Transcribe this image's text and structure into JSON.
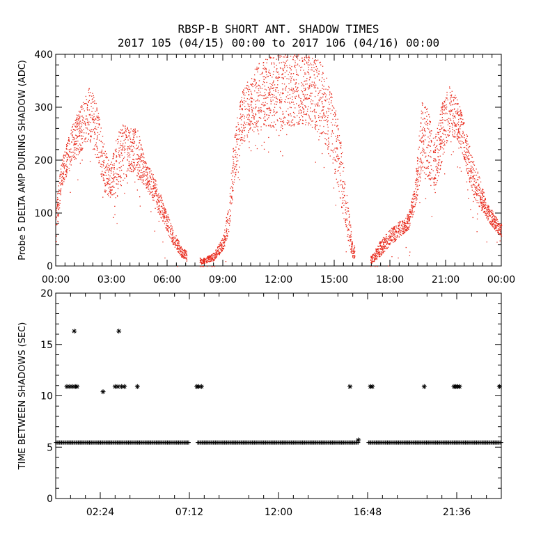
{
  "title_line1": "RBSP-B SHORT ANT. SHADOW TIMES",
  "title_line2": "2017 105 (04/15) 00:00 to 2017 106 (04/16) 00:00",
  "colors": {
    "top_points": "#e8281a",
    "bottom_points": "#000000",
    "axes": "#000000"
  },
  "chart_data": [
    {
      "type": "scatter",
      "ylabel": "Probe 5 DELTA AMP DURING SHADOW (ADC)",
      "xlabel": "",
      "xlim_hours": [
        0,
        24
      ],
      "ylim": [
        0,
        400
      ],
      "x_ticks": [
        "00:00",
        "03:00",
        "06:00",
        "09:00",
        "12:00",
        "15:00",
        "18:00",
        "21:00",
        "00:00"
      ],
      "y_ticks": [
        "0",
        "100",
        "200",
        "300",
        "400"
      ],
      "marker": "dot",
      "grid": false,
      "series": [
        {
          "color": "#e8281a",
          "envelope_upper": [
            [
              0.0,
              120
            ],
            [
              0.3,
              200
            ],
            [
              0.8,
              260
            ],
            [
              1.4,
              310
            ],
            [
              1.8,
              340
            ],
            [
              2.2,
              310
            ],
            [
              2.6,
              230
            ],
            [
              2.9,
              190
            ],
            [
              3.3,
              250
            ],
            [
              3.6,
              270
            ],
            [
              4.0,
              260
            ],
            [
              4.4,
              260
            ],
            [
              4.8,
              200
            ],
            [
              5.3,
              170
            ],
            [
              5.8,
              120
            ],
            [
              6.3,
              70
            ],
            [
              6.8,
              35
            ],
            [
              7.0,
              30
            ],
            [
              7.9,
              15
            ],
            [
              8.5,
              25
            ],
            [
              9.0,
              55
            ],
            [
              9.3,
              120
            ],
            [
              9.6,
              250
            ],
            [
              10.0,
              330
            ],
            [
              10.5,
              360
            ],
            [
              11.0,
              390
            ],
            [
              12.0,
              400
            ],
            [
              13.5,
              400
            ],
            [
              14.3,
              390
            ],
            [
              14.8,
              340
            ],
            [
              15.2,
              280
            ],
            [
              15.6,
              160
            ],
            [
              16.0,
              40
            ],
            [
              17.0,
              20
            ],
            [
              17.5,
              50
            ],
            [
              18.0,
              70
            ],
            [
              18.5,
              85
            ],
            [
              19.0,
              100
            ],
            [
              19.3,
              150
            ],
            [
              19.7,
              310
            ],
            [
              20.0,
              300
            ],
            [
              20.4,
              240
            ],
            [
              20.8,
              310
            ],
            [
              21.2,
              340
            ],
            [
              21.6,
              320
            ],
            [
              22.0,
              270
            ],
            [
              22.4,
              210
            ],
            [
              22.8,
              170
            ],
            [
              23.2,
              120
            ],
            [
              23.6,
              100
            ],
            [
              24.0,
              80
            ]
          ],
          "envelope_lower": [
            [
              0.0,
              40
            ],
            [
              0.3,
              150
            ],
            [
              0.8,
              190
            ],
            [
              1.4,
              220
            ],
            [
              1.8,
              240
            ],
            [
              2.2,
              200
            ],
            [
              2.6,
              140
            ],
            [
              2.9,
              130
            ],
            [
              3.3,
              130
            ],
            [
              3.6,
              160
            ],
            [
              4.0,
              180
            ],
            [
              4.4,
              170
            ],
            [
              4.8,
              150
            ],
            [
              5.3,
              120
            ],
            [
              5.8,
              80
            ],
            [
              6.3,
              40
            ],
            [
              6.8,
              15
            ],
            [
              7.0,
              10
            ],
            [
              7.9,
              5
            ],
            [
              8.5,
              10
            ],
            [
              9.0,
              30
            ],
            [
              9.3,
              60
            ],
            [
              9.6,
              160
            ],
            [
              10.0,
              230
            ],
            [
              10.5,
              250
            ],
            [
              11.0,
              255
            ],
            [
              12.0,
              265
            ],
            [
              13.5,
              265
            ],
            [
              14.3,
              250
            ],
            [
              14.8,
              200
            ],
            [
              15.2,
              150
            ],
            [
              15.6,
              60
            ],
            [
              16.0,
              15
            ],
            [
              17.0,
              5
            ],
            [
              17.5,
              20
            ],
            [
              18.0,
              40
            ],
            [
              18.5,
              55
            ],
            [
              19.0,
              70
            ],
            [
              19.3,
              100
            ],
            [
              19.7,
              180
            ],
            [
              20.0,
              170
            ],
            [
              20.4,
              130
            ],
            [
              20.8,
              200
            ],
            [
              21.2,
              250
            ],
            [
              21.6,
              240
            ],
            [
              22.0,
              200
            ],
            [
              22.4,
              140
            ],
            [
              22.8,
              110
            ],
            [
              23.2,
              90
            ],
            [
              23.6,
              70
            ],
            [
              24.0,
              55
            ]
          ]
        }
      ]
    },
    {
      "type": "scatter",
      "ylabel": "TIME BETWEEN SHADOWS (SEC)",
      "xlabel": "",
      "xlim_hours": [
        0,
        24
      ],
      "ylim": [
        0,
        20
      ],
      "x_ticks": [
        "02:24",
        "07:12",
        "12:00",
        "16:48",
        "21:36"
      ],
      "y_ticks": [
        "0",
        "5",
        "10",
        "15",
        "20"
      ],
      "marker": "asterisk",
      "grid": false,
      "baseline": {
        "value": 5.45,
        "segments_hours": [
          [
            0.02,
            7.2
          ],
          [
            7.65,
            16.35
          ],
          [
            16.85,
            24.0
          ]
        ]
      },
      "points": [
        {
          "x": 0.6,
          "y": 10.9
        },
        {
          "x": 0.75,
          "y": 10.9
        },
        {
          "x": 0.9,
          "y": 10.9
        },
        {
          "x": 1.0,
          "y": 16.3
        },
        {
          "x": 1.05,
          "y": 10.9
        },
        {
          "x": 1.15,
          "y": 10.9
        },
        {
          "x": 2.55,
          "y": 10.4
        },
        {
          "x": 3.2,
          "y": 10.9
        },
        {
          "x": 3.35,
          "y": 10.9
        },
        {
          "x": 3.4,
          "y": 16.3
        },
        {
          "x": 3.55,
          "y": 10.9
        },
        {
          "x": 3.7,
          "y": 10.9
        },
        {
          "x": 4.4,
          "y": 10.9
        },
        {
          "x": 7.6,
          "y": 10.9
        },
        {
          "x": 7.7,
          "y": 10.9
        },
        {
          "x": 7.85,
          "y": 10.9
        },
        {
          "x": 15.85,
          "y": 10.9
        },
        {
          "x": 16.3,
          "y": 5.7
        },
        {
          "x": 16.95,
          "y": 10.9
        },
        {
          "x": 17.05,
          "y": 10.9
        },
        {
          "x": 19.85,
          "y": 10.9
        },
        {
          "x": 21.45,
          "y": 10.9
        },
        {
          "x": 21.55,
          "y": 10.9
        },
        {
          "x": 21.65,
          "y": 10.9
        },
        {
          "x": 21.75,
          "y": 10.9
        },
        {
          "x": 23.9,
          "y": 10.9
        }
      ]
    }
  ]
}
